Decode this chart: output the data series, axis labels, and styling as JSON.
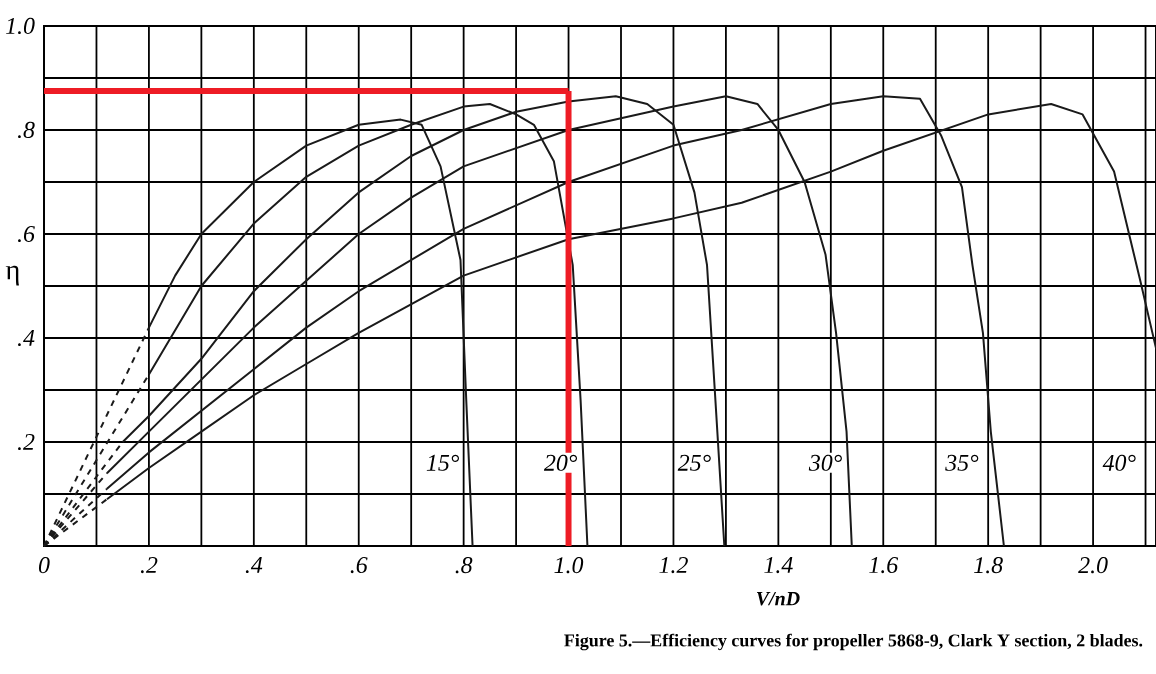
{
  "chart_data": {
    "type": "line",
    "xlabel": "V/nD",
    "ylabel": "η",
    "xlim": [
      0,
      2.12
    ],
    "ylim": [
      0,
      1.0
    ],
    "xticks": [
      0,
      {
        "value": 0.1,
        "label": null
      },
      {
        "value": 0.2,
        "label": ".2"
      },
      {
        "value": 0.3,
        "label": null
      },
      {
        "value": 0.4,
        "label": ".4"
      },
      {
        "value": 0.5,
        "label": null
      },
      {
        "value": 0.6,
        "label": ".6"
      },
      {
        "value": 0.7,
        "label": null
      },
      {
        "value": 0.8,
        "label": ".8"
      },
      {
        "value": 0.9,
        "label": null
      },
      {
        "value": 1.0,
        "label": "1.0"
      },
      {
        "value": 1.1,
        "label": null
      },
      {
        "value": 1.2,
        "label": "1.2"
      },
      {
        "value": 1.3,
        "label": null
      },
      {
        "value": 1.4,
        "label": "1.4"
      },
      {
        "value": 1.5,
        "label": null
      },
      {
        "value": 1.6,
        "label": "1.6"
      },
      {
        "value": 1.7,
        "label": null
      },
      {
        "value": 1.8,
        "label": "1.8"
      },
      {
        "value": 1.9,
        "label": null
      },
      {
        "value": 2.0,
        "label": "2.0"
      },
      {
        "value": 2.1,
        "label": null
      }
    ],
    "yticks": [
      {
        "value": 0,
        "label": null
      },
      {
        "value": 0.1,
        "label": null
      },
      {
        "value": 0.2,
        "label": ".2"
      },
      {
        "value": 0.3,
        "label": null
      },
      {
        "value": 0.4,
        "label": ".4"
      },
      {
        "value": 0.5,
        "label": null
      },
      {
        "value": 0.6,
        "label": ".6"
      },
      {
        "value": 0.7,
        "label": null
      },
      {
        "value": 0.8,
        "label": ".8"
      },
      {
        "value": 0.9,
        "label": null
      },
      {
        "value": 1.0,
        "label": "1.0"
      }
    ],
    "grid": true,
    "marker": "none",
    "line_style": "solid",
    "series": [
      {
        "color": "#1a1a1a",
        "line_style": "dashed",
        "x": [
          0,
          0.2
        ],
        "values": [
          0,
          0.42
        ]
      },
      {
        "color": "#1a1a1a",
        "x": [
          0.2,
          0.25,
          0.3,
          0.4,
          0.5,
          0.6,
          0.68,
          0.72,
          0.756,
          0.794,
          0.805,
          0.817
        ],
        "values": [
          0.42,
          0.52,
          0.6,
          0.7,
          0.77,
          0.81,
          0.82,
          0.81,
          0.73,
          0.55,
          0.28,
          0
        ]
      },
      {
        "color": "#1a1a1a",
        "line_style": "dashed",
        "x": [
          0,
          0.2
        ],
        "values": [
          0,
          0.33
        ]
      },
      {
        "color": "#1a1a1a",
        "x": [
          0.2,
          0.3,
          0.4,
          0.5,
          0.6,
          0.7,
          0.8,
          0.85,
          0.9,
          0.934,
          0.972,
          1.008,
          1.023,
          1.036
        ],
        "values": [
          0.33,
          0.5,
          0.62,
          0.71,
          0.77,
          0.81,
          0.845,
          0.85,
          0.83,
          0.81,
          0.74,
          0.54,
          0.28,
          0
        ]
      },
      {
        "color": "#1a1a1a",
        "line_style": "dashed",
        "x": [
          0,
          0.15
        ],
        "values": [
          0,
          0.2
        ]
      },
      {
        "color": "#1a1a1a",
        "x": [
          0.15,
          0.2,
          0.3,
          0.4,
          0.5,
          0.6,
          0.7,
          0.8,
          0.9,
          1.0,
          1.09,
          1.15,
          1.2,
          1.24,
          1.264,
          1.28,
          1.297
        ],
        "values": [
          0.2,
          0.25,
          0.36,
          0.49,
          0.59,
          0.68,
          0.75,
          0.8,
          0.835,
          0.855,
          0.865,
          0.85,
          0.81,
          0.68,
          0.54,
          0.28,
          0
        ]
      },
      {
        "color": "#1a1a1a",
        "line_style": "dashed",
        "x": [
          0,
          0.12
        ],
        "values": [
          0,
          0.14
        ]
      },
      {
        "color": "#1a1a1a",
        "x": [
          0.12,
          0.2,
          0.3,
          0.4,
          0.5,
          0.6,
          0.7,
          0.8,
          1.0,
          1.2,
          1.3,
          1.36,
          1.4,
          1.45,
          1.49,
          1.51,
          1.53,
          1.54
        ],
        "values": [
          0.14,
          0.22,
          0.32,
          0.42,
          0.51,
          0.6,
          0.67,
          0.73,
          0.8,
          0.845,
          0.865,
          0.85,
          0.8,
          0.7,
          0.56,
          0.41,
          0.22,
          0
        ]
      },
      {
        "color": "#1a1a1a",
        "line_style": "dashed",
        "x": [
          0,
          0.12
        ],
        "values": [
          0,
          0.11
        ]
      },
      {
        "color": "#1a1a1a",
        "x": [
          0.12,
          0.2,
          0.3,
          0.4,
          0.5,
          0.6,
          0.8,
          1.0,
          1.2,
          1.33,
          1.5,
          1.6,
          1.67,
          1.71,
          1.75,
          1.77,
          1.79,
          1.805,
          1.83
        ],
        "values": [
          0.11,
          0.18,
          0.26,
          0.34,
          0.42,
          0.49,
          0.61,
          0.7,
          0.77,
          0.8,
          0.85,
          0.865,
          0.86,
          0.79,
          0.69,
          0.54,
          0.41,
          0.22,
          0
        ]
      },
      {
        "color": "#1a1a1a",
        "line_style": "dashed",
        "x": [
          0,
          0.12
        ],
        "values": [
          0,
          0.09
        ]
      },
      {
        "color": "#1a1a1a",
        "x": [
          0.12,
          0.2,
          0.3,
          0.4,
          0.5,
          0.6,
          0.8,
          1.0,
          1.2,
          1.33,
          1.5,
          1.6,
          1.8,
          1.92,
          1.98,
          2.04,
          2.09,
          2.12
        ],
        "values": [
          0.09,
          0.15,
          0.22,
          0.29,
          0.35,
          0.41,
          0.52,
          0.59,
          0.63,
          0.66,
          0.72,
          0.76,
          0.83,
          0.85,
          0.83,
          0.72,
          0.51,
          0.38
        ]
      }
    ],
    "ref_lines": [
      {
        "axis": "y",
        "value": 0.875,
        "color": "#ee1c25"
      },
      {
        "axis": "x",
        "value": 1.0,
        "color": "#ee1c25"
      }
    ],
    "annotations": [
      {
        "text": "15°",
        "x": 0.76,
        "y": 0.16
      },
      {
        "text": "20°",
        "x": 0.985,
        "y": 0.16
      },
      {
        "text": "25°",
        "x": 1.24,
        "y": 0.16
      },
      {
        "text": "30°",
        "x": 1.49,
        "y": 0.16
      },
      {
        "text": "35°",
        "x": 1.75,
        "y": 0.16
      },
      {
        "text": "40°",
        "x": 2.05,
        "y": 0.16
      },
      "Figure 5.—Efficiency curves for propeller 5868-9, Clark Y section, 2 blades."
    ]
  }
}
